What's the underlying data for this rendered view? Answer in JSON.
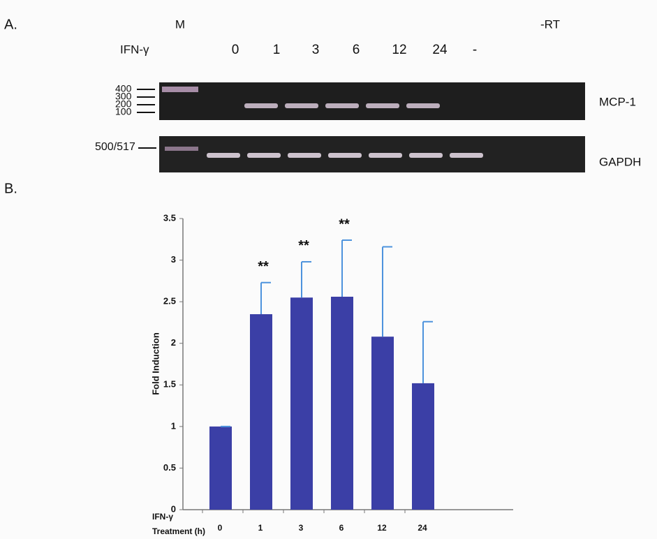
{
  "panel_a": {
    "label": "A.",
    "marker_lane": "M",
    "treatment": "IFN-γ",
    "lanes": [
      "0",
      "1",
      "3",
      "6",
      "12",
      "24",
      "-"
    ],
    "no_rt": "-RT",
    "ladder": [
      "400",
      "300",
      "200",
      "100"
    ],
    "gapdh_size": "500/517",
    "genes": [
      "MCP-1",
      "GAPDH"
    ]
  },
  "chart_data": {
    "type": "bar",
    "panel_label": "B.",
    "y_label": "Fold Induction",
    "x_label": [
      "IFN-γ",
      "Treatment (h)"
    ],
    "categories": [
      "0",
      "1",
      "3",
      "6",
      "12",
      "24"
    ],
    "series": [
      {
        "name": "MCP-1",
        "color": "#3b3fa6",
        "error_color": "#4d93dd",
        "values": [
          1.0,
          2.35,
          2.55,
          2.56,
          2.08,
          1.52
        ],
        "errors": [
          0.0,
          0.38,
          0.43,
          0.68,
          1.08,
          0.74
        ],
        "annotations": [
          null,
          "**",
          "**",
          "**",
          null,
          null
        ]
      }
    ],
    "ylim": [
      0,
      3.5
    ],
    "yticks": [
      0,
      0.5,
      1,
      1.5,
      2,
      2.5,
      3,
      3.5
    ],
    "grid": false
  }
}
